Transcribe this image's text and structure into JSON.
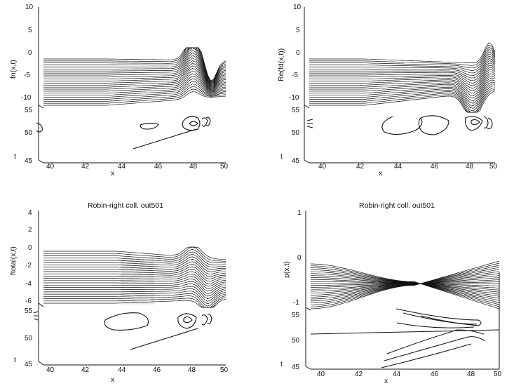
{
  "chart_data": [
    {
      "type": "surface-3d",
      "title": "",
      "zlabel": "fn(x,t)",
      "xlabel": "x",
      "ylabel": "t",
      "zticks": [
        "10",
        "5",
        "0",
        "-5",
        "-10"
      ],
      "xticks": [
        "40",
        "42",
        "44",
        "46",
        "48",
        "50"
      ],
      "yticks": [
        "55",
        "50",
        "45"
      ],
      "zlim": [
        -10,
        10
      ],
      "xlim": [
        39.5,
        50
      ],
      "ylim": [
        45,
        55
      ],
      "surface": {
        "x": [
          39.5,
          44.5,
          48.2,
          48.6,
          49,
          50
        ],
        "z_first": [
          -2,
          -2,
          -1,
          0,
          -10,
          -8
        ],
        "z_last": [
          -10,
          -10,
          -9,
          -3,
          -8,
          -8
        ]
      },
      "contours": [
        {
          "x": [
            45,
            46
          ],
          "t": [
            48.5,
            48.5
          ]
        },
        {
          "x": [
            47.6,
            48.7
          ],
          "t": [
            48,
            49
          ]
        }
      ]
    },
    {
      "type": "surface-3d",
      "title": "",
      "zlabel": "Re(fd(x,t))",
      "xlabel": "x",
      "ylabel": "t",
      "zticks": [
        "10",
        "5",
        "0",
        "-5",
        "-10"
      ],
      "xticks": [
        "40",
        "42",
        "44",
        "46",
        "48",
        "50"
      ],
      "yticks": [
        "55",
        "50",
        "45"
      ],
      "zlim": [
        -10,
        10
      ],
      "xlim": [
        39.5,
        50
      ],
      "ylim": [
        45,
        55
      ],
      "surface": {
        "x": [
          39.5,
          44,
          47.5,
          48.3,
          48.9,
          49.3
        ],
        "z_first": [
          -1,
          -1,
          -2,
          -5,
          0,
          3
        ],
        "z_last": [
          -9,
          -9,
          -10,
          -10,
          -5,
          -5
        ]
      },
      "contours": [
        {
          "x": [
            43.8,
            46.5
          ],
          "t": [
            48,
            49
          ]
        },
        {
          "x": [
            47.5,
            48.7
          ],
          "t": [
            48,
            49
          ]
        }
      ]
    },
    {
      "type": "surface-3d",
      "title": "Robin-right coll. out501",
      "zlabel": "ftotal(x,t)",
      "xlabel": "x",
      "ylabel": "t",
      "zticks": [
        "4",
        "2",
        "0",
        "-2",
        "-4",
        "-6"
      ],
      "xticks": [
        "40",
        "42",
        "44",
        "46",
        "48",
        "50"
      ],
      "yticks": [
        "55",
        "50",
        "45"
      ],
      "zlim": [
        -6,
        4
      ],
      "xlim": [
        39.5,
        50
      ],
      "ylim": [
        45,
        55
      ],
      "surface": {
        "x": [
          39.5,
          44,
          47.7,
          48.2,
          49.3
        ],
        "z_first": [
          -0.5,
          -0.5,
          -0.7,
          0.5,
          -1
        ],
        "z_last": [
          -6,
          -6,
          -5.5,
          -4,
          -4
        ]
      },
      "contours": [
        {
          "x": [
            44.6,
            46.8
          ],
          "t": [
            51,
            52
          ]
        },
        {
          "x": [
            47.5,
            48.7
          ],
          "t": [
            51,
            52
          ]
        }
      ]
    },
    {
      "type": "surface-3d",
      "title": "Robin-right coll. out501",
      "zlabel": "p(x,t)",
      "xlabel": "x",
      "ylabel": "t",
      "zticks": [
        "1",
        "0",
        "-1"
      ],
      "xticks": [
        "40",
        "42",
        "44",
        "46",
        "48",
        "50"
      ],
      "yticks": [
        "55",
        "50",
        "45"
      ],
      "zlim": [
        -1,
        1
      ],
      "xlim": [
        39.5,
        50
      ],
      "ylim": [
        45,
        55
      ],
      "surface": {
        "x": [
          39.5,
          46,
          49.5
        ],
        "z_first": [
          -0.2,
          -0.6,
          -1
        ],
        "z_last": [
          -1,
          -0.6,
          -0.2
        ]
      },
      "contours": [
        {
          "x": [
            44,
            49
          ],
          "t": [
            49,
            53
          ]
        }
      ]
    }
  ]
}
